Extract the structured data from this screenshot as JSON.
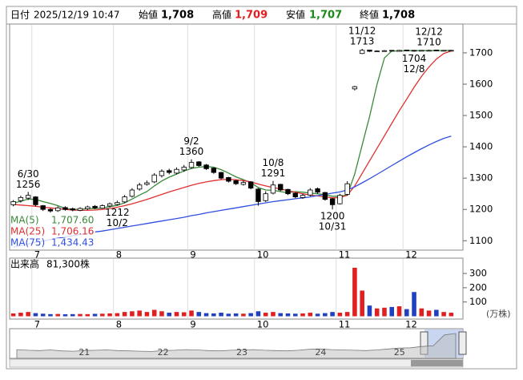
{
  "header": {
    "fields": [
      {
        "label": "日付",
        "value": "2025/12/19 10:47"
      },
      {
        "label": "始値",
        "value": "1,708"
      },
      {
        "label": "高値",
        "value": "1,709"
      },
      {
        "label": "安値",
        "value": "1,707"
      },
      {
        "label": "終値",
        "value": "1,708"
      }
    ]
  },
  "chart_data": [
    {
      "type": "candlestick",
      "categories": [
        null,
        null,
        null,
        "7",
        null,
        null,
        null,
        null,
        null,
        null,
        null,
        null,
        null,
        null,
        "8",
        null,
        null,
        null,
        null,
        null,
        null,
        null,
        null,
        null,
        "9",
        null,
        null,
        null,
        null,
        null,
        null,
        null,
        null,
        "10",
        null,
        null,
        null,
        null,
        null,
        null,
        null,
        null,
        null,
        null,
        "11",
        null,
        null,
        null,
        null,
        null,
        null,
        null,
        null,
        "12",
        null,
        null,
        null,
        null,
        null,
        null
      ],
      "open": [
        1215,
        1228,
        1236,
        1240,
        1212,
        1200,
        1196,
        1206,
        1202,
        1197,
        1202,
        1210,
        1204,
        1211,
        1216,
        1224,
        1242,
        1265,
        1280,
        1288,
        1308,
        1324,
        1316,
        1326,
        1334,
        1352,
        1342,
        1332,
        1318,
        1302,
        1292,
        1280,
        1288,
        1265,
        1228,
        1252,
        1280,
        1264,
        1252,
        1238,
        1246,
        1266,
        1254,
        1234,
        1218,
        1248,
        1585,
        1698,
        1709,
        1704,
        1705,
        1708,
        1705,
        1709,
        1708,
        1706,
        1707,
        1709,
        1706,
        1708
      ],
      "high": [
        1230,
        1244,
        1256,
        1242,
        1214,
        1204,
        1210,
        1210,
        1206,
        1207,
        1212,
        1214,
        1216,
        1222,
        1228,
        1246,
        1268,
        1285,
        1292,
        1316,
        1328,
        1330,
        1334,
        1342,
        1360,
        1354,
        1345,
        1334,
        1320,
        1304,
        1294,
        1292,
        1290,
        1268,
        1258,
        1291,
        1282,
        1266,
        1254,
        1250,
        1268,
        1270,
        1256,
        1236,
        1250,
        1290,
        1595,
        1713,
        1709,
        1708,
        1709,
        1709,
        1709,
        1709,
        1709,
        1709,
        1710,
        1709,
        1709,
        1709
      ],
      "low": [
        1210,
        1222,
        1230,
        1210,
        1195,
        1190,
        1192,
        1196,
        1194,
        1194,
        1198,
        1201,
        1202,
        1206,
        1212,
        1220,
        1238,
        1260,
        1276,
        1284,
        1302,
        1312,
        1312,
        1320,
        1330,
        1336,
        1326,
        1314,
        1296,
        1286,
        1278,
        1276,
        1264,
        1212,
        1224,
        1248,
        1258,
        1246,
        1236,
        1234,
        1242,
        1250,
        1228,
        1200,
        1216,
        1244,
        1580,
        1696,
        1703,
        1703,
        1705,
        1705,
        1705,
        1706,
        1704,
        1705,
        1706,
        1706,
        1705,
        1707
      ],
      "close": [
        1225,
        1238,
        1245,
        1215,
        1200,
        1195,
        1205,
        1200,
        1198,
        1203,
        1208,
        1205,
        1212,
        1218,
        1222,
        1240,
        1262,
        1278,
        1285,
        1310,
        1322,
        1318,
        1328,
        1335,
        1350,
        1340,
        1330,
        1318,
        1300,
        1290,
        1282,
        1286,
        1268,
        1225,
        1250,
        1278,
        1262,
        1250,
        1240,
        1245,
        1262,
        1255,
        1232,
        1215,
        1245,
        1282,
        1592,
        1708,
        1705,
        1706,
        1707,
        1706,
        1708,
        1707,
        1706,
        1708,
        1708,
        1707,
        1708,
        1708
      ],
      "series": [
        {
          "name": "MA(5)",
          "color": "#3a8a3a",
          "value_label": "1,707.60",
          "values": [
            1220,
            1226,
            1233,
            1232,
            1225,
            1219,
            1212,
            1203,
            1200,
            1200,
            1203,
            1203,
            1205,
            1209,
            1213,
            1221,
            1233,
            1246,
            1257,
            1275,
            1291,
            1303,
            1313,
            1323,
            1331,
            1335,
            1337,
            1335,
            1327,
            1316,
            1304,
            1295,
            1285,
            1270,
            1262,
            1261,
            1257,
            1253,
            1257,
            1255,
            1252,
            1250,
            1247,
            1242,
            1242,
            1246,
            1313,
            1406,
            1496,
            1599,
            1684,
            1706,
            1706,
            1707,
            1707,
            1707,
            1707,
            1707,
            1707,
            1708
          ]
        },
        {
          "name": "MA(25)",
          "color": "#e03030",
          "value_label": "1,706.16",
          "values": [
            1216,
            1214,
            1212,
            1210,
            1207,
            1205,
            1202,
            1200,
            1198,
            1197,
            1197,
            1198,
            1200,
            1203,
            1207,
            1212,
            1218,
            1225,
            1232,
            1240,
            1248,
            1256,
            1263,
            1270,
            1277,
            1283,
            1288,
            1292,
            1295,
            1296,
            1295,
            1292,
            1288,
            1281,
            1275,
            1270,
            1265,
            1260,
            1255,
            1250,
            1246,
            1243,
            1240,
            1237,
            1238,
            1245,
            1275,
            1315,
            1355,
            1395,
            1435,
            1475,
            1515,
            1552,
            1590,
            1625,
            1655,
            1680,
            1698,
            1706
          ]
        },
        {
          "name": "MA(75)",
          "color": "#3050e0",
          "value_label": "1,434.43",
          "values": [
            1080,
            1085,
            1090,
            1095,
            1099,
            1104,
            1108,
            1112,
            1116,
            1120,
            1124,
            1128,
            1131,
            1135,
            1139,
            1143,
            1147,
            1151,
            1155,
            1159,
            1163,
            1167,
            1171,
            1175,
            1180,
            1184,
            1189,
            1193,
            1197,
            1201,
            1205,
            1209,
            1213,
            1217,
            1221,
            1225,
            1228,
            1231,
            1234,
            1237,
            1240,
            1244,
            1248,
            1252,
            1256,
            1262,
            1272,
            1285,
            1298,
            1312,
            1326,
            1340,
            1354,
            1368,
            1381,
            1394,
            1406,
            1417,
            1427,
            1434
          ]
        }
      ],
      "annotations": [
        {
          "date": "6/30",
          "value": 1256,
          "position": "above"
        },
        {
          "date": "9/2",
          "value": 1360,
          "position": "above"
        },
        {
          "date": "10/8",
          "value": 1291,
          "position": "above"
        },
        {
          "date": "10/2",
          "value": 1212,
          "position": "below"
        },
        {
          "date": "10/31",
          "value": 1200,
          "position": "below"
        },
        {
          "date": "11/12",
          "value": 1713,
          "position": "above"
        },
        {
          "date": "12/12",
          "value": 1710,
          "position": "above"
        },
        {
          "date": "12/8",
          "value": 1704,
          "position": "below"
        }
      ],
      "ylim": [
        1070,
        1792
      ],
      "yticks": [
        1100,
        1200,
        1300,
        1400,
        1500,
        1600,
        1700
      ]
    },
    {
      "type": "bar",
      "title": "出来高",
      "total_label": "81,300株",
      "unit": "(万株)",
      "up_color": "#e02020",
      "down_color": "#2040c0",
      "values": [
        20,
        25,
        30,
        22,
        18,
        15,
        16,
        14,
        15,
        16,
        15,
        17,
        18,
        20,
        22,
        30,
        35,
        40,
        30,
        45,
        35,
        25,
        30,
        28,
        40,
        30,
        22,
        20,
        25,
        18,
        20,
        18,
        22,
        35,
        25,
        30,
        22,
        20,
        18,
        20,
        25,
        18,
        22,
        30,
        25,
        30,
        340,
        180,
        75,
        55,
        60,
        65,
        70,
        50,
        170,
        55,
        40,
        45,
        30,
        25
      ],
      "ylim": [
        0,
        368
      ],
      "yticks": [
        100,
        200,
        300
      ]
    },
    {
      "type": "area",
      "color": "#bbbbbb",
      "categories": [
        null,
        null,
        null,
        null,
        null,
        null,
        "21",
        null,
        null,
        null,
        null,
        null,
        null,
        "22",
        null,
        null,
        null,
        null,
        null,
        null,
        "23",
        null,
        null,
        null,
        null,
        null,
        null,
        "24",
        null,
        null,
        null,
        null,
        null,
        null,
        "25",
        null,
        null,
        null,
        null,
        null
      ],
      "values": [
        1180,
        1160,
        1150,
        1170,
        1140,
        1130,
        1150,
        1160,
        1170,
        1150,
        1140,
        1130,
        1120,
        1150,
        1160,
        1180,
        1170,
        1150,
        1140,
        1160,
        1170,
        1180,
        1160,
        1150,
        1140,
        1160,
        1190,
        1200,
        1180,
        1170,
        1160,
        1150,
        1170,
        1200,
        1230,
        1240,
        1280,
        1300,
        1650,
        1700
      ],
      "ylim": [
        900,
        1800
      ]
    }
  ]
}
